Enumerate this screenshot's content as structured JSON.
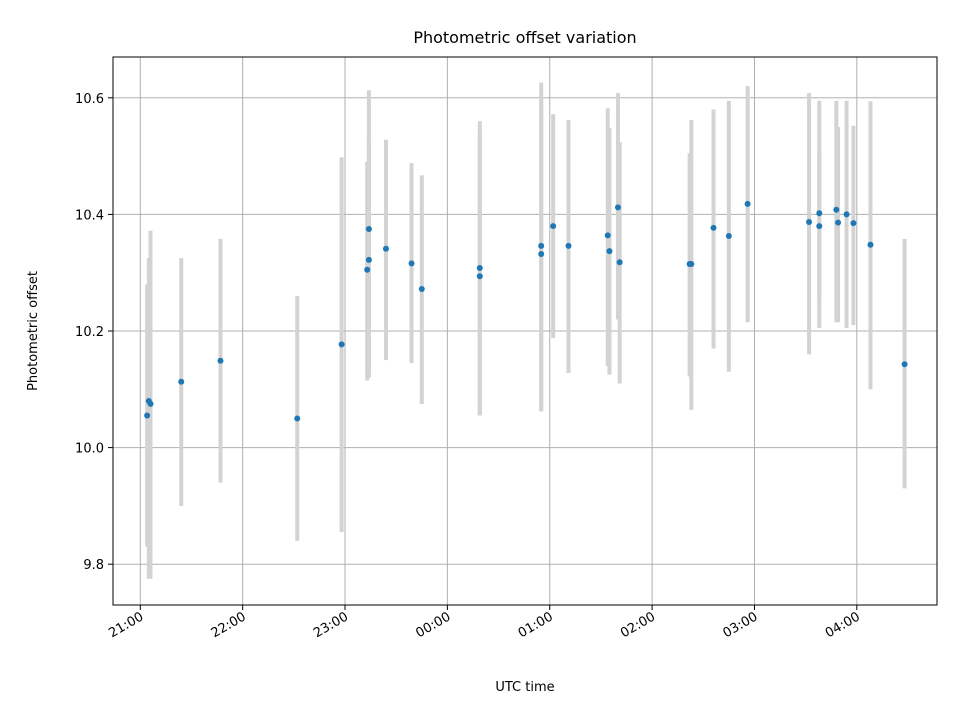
{
  "chart_data": {
    "type": "scatter",
    "title": "Photometric offset variation",
    "xlabel": "UTC time",
    "ylabel": "Photometric offset",
    "grid": true,
    "ylim": [
      9.73,
      10.67
    ],
    "xlim": [
      "20:44",
      "04:47"
    ],
    "x_ticks": [
      "21:00",
      "22:00",
      "23:00",
      "00:00",
      "01:00",
      "02:00",
      "03:00",
      "04:00"
    ],
    "y_ticks": [
      "9.8",
      "10.0",
      "10.2",
      "10.4",
      "10.6"
    ],
    "colors": {
      "points": "#1f77b4",
      "error_bars": "#d3d3d3"
    },
    "series": [
      {
        "x": [
          "21:04",
          "21:05",
          "21:06",
          "21:24",
          "21:47",
          "22:32",
          "22:58",
          "23:13",
          "23:14",
          "23:14",
          "23:24",
          "23:39",
          "23:45",
          "00:19",
          "00:19",
          "00:55",
          "00:55",
          "01:02",
          "01:11",
          "01:34",
          "01:35",
          "01:40",
          "01:41",
          "02:22",
          "02:23",
          "02:36",
          "02:45",
          "02:56",
          "03:32",
          "03:38",
          "03:38",
          "03:48",
          "03:49",
          "03:54",
          "03:58",
          "04:08",
          "04:28"
        ],
        "y": [
          10.055,
          10.08,
          10.075,
          10.113,
          10.149,
          10.05,
          10.177,
          10.305,
          10.322,
          10.375,
          10.341,
          10.316,
          10.272,
          10.294,
          10.308,
          10.332,
          10.346,
          10.38,
          10.346,
          10.364,
          10.337,
          10.412,
          10.318,
          10.315,
          10.315,
          10.377,
          10.363,
          10.418,
          10.387,
          10.38,
          10.402,
          10.408,
          10.386,
          10.4,
          10.385,
          10.348,
          10.143
        ],
        "yerr_low": [
          9.83,
          9.775,
          9.775,
          9.9,
          9.94,
          9.84,
          9.855,
          10.115,
          10.12,
          10.135,
          10.15,
          10.145,
          10.075,
          10.055,
          10.055,
          10.065,
          10.062,
          10.188,
          10.128,
          10.14,
          10.125,
          10.22,
          10.11,
          10.122,
          10.065,
          10.17,
          10.13,
          10.215,
          10.16,
          10.205,
          10.25,
          10.215,
          10.215,
          10.205,
          10.21,
          10.1,
          9.93
        ],
        "yerr_high": [
          10.28,
          10.325,
          10.372,
          10.325,
          10.358,
          10.26,
          10.498,
          10.49,
          10.524,
          10.613,
          10.528,
          10.488,
          10.467,
          10.54,
          10.56,
          10.626,
          10.6,
          10.572,
          10.562,
          10.582,
          10.548,
          10.608,
          10.524,
          10.505,
          10.562,
          10.58,
          10.595,
          10.62,
          10.608,
          10.595,
          10.51,
          10.595,
          10.55,
          10.595,
          10.552,
          10.594,
          10.358
        ]
      }
    ]
  }
}
